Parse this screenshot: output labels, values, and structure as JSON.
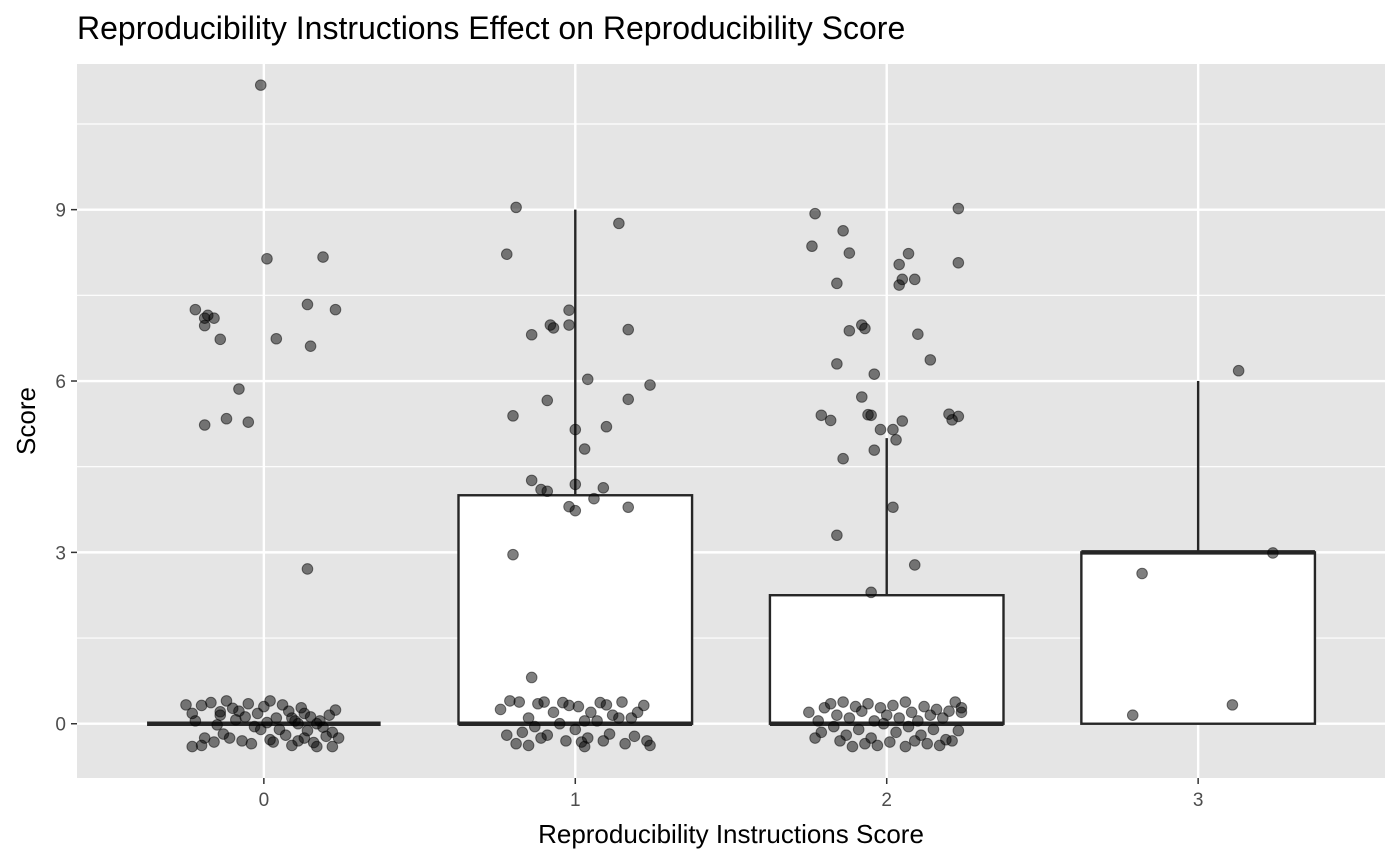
{
  "chart_data": {
    "type": "boxplot",
    "title": "Reproducibility Instructions Effect on Reproducibility Score",
    "xlabel": "Reproducibility Instructions Score",
    "ylabel": "Score",
    "categories": [
      "0",
      "1",
      "2",
      "3"
    ],
    "x_range": [
      -0.6,
      3.6
    ],
    "ylim": [
      -0.95,
      11.55
    ],
    "y_ticks": [
      0,
      3,
      6,
      9
    ],
    "grid": true,
    "colors": {
      "panel": "#e5e5e5",
      "grid": "#ffffff",
      "box_fill": "#ffffff",
      "box_line": "#262626",
      "point": "#000000",
      "tick_text": "#4d4d4d"
    },
    "boxes": [
      {
        "x": 0,
        "lower": 0,
        "q1": 0,
        "median": 0,
        "q3": 0,
        "upper": 0
      },
      {
        "x": 1,
        "lower": 0,
        "q1": 0,
        "median": 0,
        "q3": 4,
        "upper": 9
      },
      {
        "x": 2,
        "lower": 0,
        "q1": 0,
        "median": 0,
        "q3": 2.25,
        "upper": 5
      },
      {
        "x": 3,
        "lower": 0,
        "q1": 0,
        "median": 3,
        "q3": 3,
        "upper": 6
      }
    ],
    "points": [
      [
        -0.01,
        11.18
      ],
      [
        0.01,
        8.14
      ],
      [
        0.19,
        8.17
      ],
      [
        -0.22,
        7.25
      ],
      [
        -0.18,
        7.15
      ],
      [
        -0.19,
        7.1
      ],
      [
        -0.16,
        7.1
      ],
      [
        -0.19,
        6.97
      ],
      [
        0.14,
        7.34
      ],
      [
        0.23,
        7.25
      ],
      [
        -0.14,
        6.73
      ],
      [
        0.04,
        6.74
      ],
      [
        0.15,
        6.61
      ],
      [
        -0.08,
        5.86
      ],
      [
        -0.12,
        5.34
      ],
      [
        -0.19,
        5.23
      ],
      [
        -0.05,
        5.28
      ],
      [
        0.14,
        2.71
      ],
      [
        -0.25,
        0.33
      ],
      [
        -0.23,
        0.18
      ],
      [
        -0.2,
        0.32
      ],
      [
        -0.17,
        0.37
      ],
      [
        -0.14,
        0.15
      ],
      [
        -0.12,
        0.4
      ],
      [
        -0.1,
        0.27
      ],
      [
        -0.08,
        0.22
      ],
      [
        -0.06,
        0.12
      ],
      [
        -0.05,
        0.35
      ],
      [
        -0.02,
        0.18
      ],
      [
        0.0,
        0.3
      ],
      [
        0.02,
        0.4
      ],
      [
        0.04,
        0.1
      ],
      [
        0.06,
        0.33
      ],
      [
        0.08,
        0.22
      ],
      [
        0.1,
        0.05
      ],
      [
        0.12,
        0.28
      ],
      [
        0.13,
        0.18
      ],
      [
        0.15,
        0.12
      ],
      [
        0.17,
        0.0
      ],
      [
        0.19,
        -0.06
      ],
      [
        0.21,
        0.15
      ],
      [
        0.23,
        0.24
      ],
      [
        -0.22,
        0.05
      ],
      [
        -0.15,
        -0.02
      ],
      [
        -0.09,
        0.07
      ],
      [
        -0.03,
        -0.05
      ],
      [
        0.01,
        0.02
      ],
      [
        0.05,
        -0.1
      ],
      [
        0.09,
        0.1
      ],
      [
        0.14,
        -0.12
      ],
      [
        0.18,
        0.05
      ],
      [
        0.22,
        -0.15
      ],
      [
        -0.19,
        -0.25
      ],
      [
        -0.13,
        -0.18
      ],
      [
        -0.07,
        -0.3
      ],
      [
        0.02,
        -0.28
      ],
      [
        0.07,
        -0.2
      ],
      [
        0.11,
        -0.3
      ],
      [
        0.16,
        -0.33
      ],
      [
        0.2,
        -0.22
      ],
      [
        0.24,
        -0.25
      ],
      [
        -0.2,
        -0.38
      ],
      [
        -0.16,
        -0.32
      ],
      [
        -0.11,
        -0.25
      ],
      [
        -0.04,
        -0.35
      ],
      [
        0.03,
        -0.32
      ],
      [
        0.09,
        -0.38
      ],
      [
        0.13,
        -0.25
      ],
      [
        0.17,
        -0.4
      ],
      [
        0.22,
        -0.4
      ],
      [
        -0.23,
        -0.4
      ],
      [
        -0.14,
        0.21
      ],
      [
        -0.01,
        -0.1
      ],
      [
        0.11,
        0.0
      ],
      [
        0.81,
        9.04
      ],
      [
        1.14,
        8.76
      ],
      [
        0.78,
        8.22
      ],
      [
        0.98,
        7.24
      ],
      [
        0.92,
        6.98
      ],
      [
        0.93,
        6.93
      ],
      [
        0.98,
        6.98
      ],
      [
        1.17,
        6.9
      ],
      [
        0.86,
        6.81
      ],
      [
        1.04,
        6.03
      ],
      [
        1.24,
        5.93
      ],
      [
        1.17,
        5.68
      ],
      [
        0.91,
        5.66
      ],
      [
        0.8,
        5.39
      ],
      [
        1.0,
        5.15
      ],
      [
        1.1,
        5.2
      ],
      [
        1.03,
        4.81
      ],
      [
        0.86,
        4.26
      ],
      [
        0.89,
        4.1
      ],
      [
        0.91,
        4.07
      ],
      [
        1.0,
        4.19
      ],
      [
        1.09,
        4.13
      ],
      [
        0.98,
        3.8
      ],
      [
        1.06,
        3.94
      ],
      [
        1.17,
        3.79
      ],
      [
        1.0,
        3.73
      ],
      [
        0.8,
        2.96
      ],
      [
        0.86,
        0.81
      ],
      [
        0.76,
        0.25
      ],
      [
        0.79,
        0.4
      ],
      [
        0.82,
        0.38
      ],
      [
        0.85,
        0.1
      ],
      [
        0.88,
        0.35
      ],
      [
        0.9,
        0.38
      ],
      [
        0.93,
        0.2
      ],
      [
        0.96,
        0.37
      ],
      [
        0.98,
        0.32
      ],
      [
        1.01,
        0.3
      ],
      [
        1.03,
        0.05
      ],
      [
        1.05,
        0.2
      ],
      [
        1.08,
        0.37
      ],
      [
        1.1,
        0.33
      ],
      [
        1.12,
        0.15
      ],
      [
        1.15,
        0.38
      ],
      [
        1.18,
        0.1
      ],
      [
        1.2,
        0.2
      ],
      [
        1.22,
        0.32
      ],
      [
        0.78,
        -0.2
      ],
      [
        0.83,
        -0.15
      ],
      [
        0.87,
        -0.05
      ],
      [
        0.91,
        -0.2
      ],
      [
        0.95,
        0.0
      ],
      [
        1.0,
        -0.1
      ],
      [
        1.04,
        -0.25
      ],
      [
        1.07,
        0.05
      ],
      [
        1.11,
        -0.18
      ],
      [
        1.14,
        0.1
      ],
      [
        1.19,
        -0.22
      ],
      [
        1.23,
        -0.3
      ],
      [
        0.81,
        -0.35
      ],
      [
        0.89,
        -0.25
      ],
      [
        0.97,
        -0.3
      ],
      [
        1.02,
        -0.32
      ],
      [
        1.09,
        -0.3
      ],
      [
        1.16,
        -0.35
      ],
      [
        1.24,
        -0.38
      ],
      [
        0.85,
        -0.38
      ],
      [
        1.03,
        -0.4
      ],
      [
        1.77,
        8.93
      ],
      [
        2.23,
        9.02
      ],
      [
        1.76,
        8.36
      ],
      [
        1.86,
        8.63
      ],
      [
        1.88,
        8.24
      ],
      [
        2.07,
        8.23
      ],
      [
        2.04,
        8.04
      ],
      [
        2.23,
        8.07
      ],
      [
        2.05,
        7.78
      ],
      [
        2.09,
        7.78
      ],
      [
        1.84,
        7.71
      ],
      [
        2.04,
        7.68
      ],
      [
        1.92,
        6.98
      ],
      [
        1.93,
        6.92
      ],
      [
        1.88,
        6.88
      ],
      [
        2.1,
        6.82
      ],
      [
        2.14,
        6.37
      ],
      [
        1.84,
        6.3
      ],
      [
        1.96,
        6.12
      ],
      [
        1.92,
        5.72
      ],
      [
        1.79,
        5.4
      ],
      [
        1.94,
        5.41
      ],
      [
        1.95,
        5.4
      ],
      [
        2.2,
        5.42
      ],
      [
        2.23,
        5.38
      ],
      [
        2.21,
        5.32
      ],
      [
        1.82,
        5.31
      ],
      [
        2.05,
        5.3
      ],
      [
        1.98,
        5.15
      ],
      [
        2.02,
        5.15
      ],
      [
        2.03,
        4.97
      ],
      [
        1.96,
        4.79
      ],
      [
        1.86,
        4.64
      ],
      [
        2.02,
        3.79
      ],
      [
        1.84,
        3.3
      ],
      [
        2.09,
        2.78
      ],
      [
        1.95,
        2.3
      ],
      [
        1.75,
        0.2
      ],
      [
        1.78,
        0.05
      ],
      [
        1.8,
        0.28
      ],
      [
        1.82,
        0.35
      ],
      [
        1.84,
        0.15
      ],
      [
        1.86,
        0.38
      ],
      [
        1.88,
        0.1
      ],
      [
        1.9,
        0.3
      ],
      [
        1.92,
        0.22
      ],
      [
        1.94,
        0.35
      ],
      [
        1.96,
        0.05
      ],
      [
        1.98,
        0.28
      ],
      [
        2.0,
        0.15
      ],
      [
        2.02,
        0.32
      ],
      [
        2.04,
        0.1
      ],
      [
        2.06,
        0.38
      ],
      [
        2.08,
        0.2
      ],
      [
        2.1,
        0.05
      ],
      [
        2.12,
        0.3
      ],
      [
        2.14,
        0.15
      ],
      [
        2.16,
        0.25
      ],
      [
        2.18,
        0.1
      ],
      [
        2.2,
        0.22
      ],
      [
        2.22,
        0.38
      ],
      [
        2.24,
        0.2
      ],
      [
        1.79,
        -0.15
      ],
      [
        1.83,
        -0.05
      ],
      [
        1.87,
        -0.2
      ],
      [
        1.91,
        -0.1
      ],
      [
        1.95,
        -0.25
      ],
      [
        1.99,
        0.0
      ],
      [
        2.03,
        -0.15
      ],
      [
        2.07,
        -0.05
      ],
      [
        2.11,
        -0.2
      ],
      [
        2.15,
        -0.1
      ],
      [
        2.19,
        -0.28
      ],
      [
        2.23,
        -0.12
      ],
      [
        1.77,
        -0.25
      ],
      [
        1.85,
        -0.3
      ],
      [
        1.93,
        -0.35
      ],
      [
        2.01,
        -0.32
      ],
      [
        2.06,
        -0.4
      ],
      [
        2.13,
        -0.35
      ],
      [
        2.17,
        -0.38
      ],
      [
        2.21,
        -0.3
      ],
      [
        1.89,
        -0.4
      ],
      [
        1.97,
        -0.38
      ],
      [
        2.09,
        -0.3
      ],
      [
        2.24,
        0.28
      ],
      [
        3.13,
        6.18
      ],
      [
        3.24,
        2.99
      ],
      [
        2.82,
        2.63
      ],
      [
        2.79,
        0.15
      ],
      [
        3.11,
        0.33
      ]
    ]
  }
}
